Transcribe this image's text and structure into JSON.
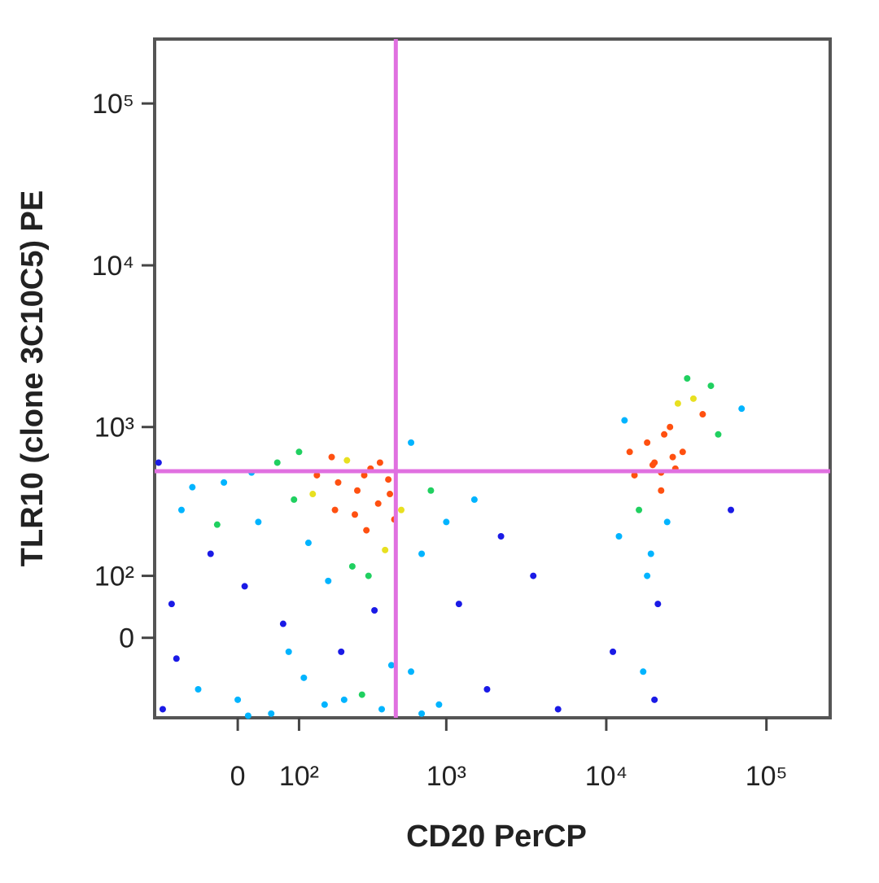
{
  "chart_data": {
    "type": "scatter",
    "x_label": "CD20 PerCP",
    "y_label": "TLR10 (clone 3C10C5) PE",
    "xscale": "biexponential",
    "yscale": "biexponential",
    "xlim": [
      -150,
      250000
    ],
    "ylim": [
      -140,
      250000
    ],
    "xticks": [
      0,
      {
        "value": 100,
        "label": "10²"
      },
      {
        "value": 1000,
        "label": "10³"
      },
      {
        "value": 10000,
        "label": "10⁴"
      },
      {
        "value": 100000,
        "label": "10⁵"
      }
    ],
    "yticks": [
      0,
      {
        "value": 100,
        "label": "10²"
      },
      {
        "value": 1000,
        "label": "10³"
      },
      {
        "value": 10000,
        "label": "10⁴"
      },
      {
        "value": 100000,
        "label": "10⁵"
      }
    ],
    "gate": {
      "x": 480,
      "y": 530,
      "color": "#e070e0"
    },
    "color": "#1a1ae6",
    "x": [
      -130,
      -110,
      -90,
      -60,
      -40,
      -20,
      0,
      10,
      30,
      50,
      60,
      70,
      90,
      110,
      120,
      140,
      160,
      170,
      190,
      210,
      230,
      250,
      270,
      290,
      310,
      330,
      350,
      370,
      390,
      410,
      430,
      450,
      470,
      -140,
      -100,
      -70,
      -30,
      20,
      80,
      130,
      180,
      220,
      260,
      320,
      380,
      440,
      15,
      200,
      300,
      100,
      520,
      600,
      700,
      800,
      900,
      1000,
      1200,
      1500,
      1800,
      600,
      2200,
      3500,
      5000,
      700,
      12000,
      15000,
      18000,
      20000,
      22000,
      25000,
      30000,
      35000,
      40000,
      16000,
      19000,
      21000,
      17000,
      23000,
      27000,
      14000,
      13000,
      45000,
      50000,
      28000,
      32000,
      24000,
      20000,
      18000,
      26000,
      60000,
      70000,
      11000,
      22000,
      19500
    ],
    "y": [
      -120,
      50,
      300,
      -80,
      150,
      450,
      -100,
      80,
      250,
      -130,
      600,
      20,
      350,
      -60,
      180,
      500,
      -110,
      90,
      300,
      -20,
      620,
      120,
      400,
      -90,
      220,
      550,
      40,
      330,
      -120,
      160,
      470,
      -40,
      260,
      600,
      -30,
      420,
      240,
      520,
      -20,
      380,
      650,
      -100,
      280,
      100,
      600,
      380,
      -135,
      450,
      500,
      700,
      300,
      -50,
      150,
      400,
      -110,
      250,
      50,
      350,
      -80,
      800,
      200,
      100,
      -120,
      -130,
      200,
      500,
      800,
      600,
      400,
      1000,
      700,
      1500,
      1200,
      300,
      150,
      50,
      -50,
      900,
      550,
      700,
      1100,
      1800,
      900,
      1400,
      2000,
      250,
      -100,
      100,
      650,
      300,
      1300,
      -20,
      520,
      580
    ]
  }
}
